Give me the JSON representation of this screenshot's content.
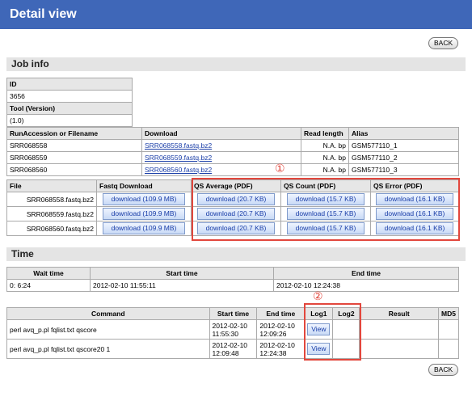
{
  "header": {
    "title": "Detail view"
  },
  "back_label": "BACK",
  "job": {
    "section_title": "Job info",
    "id_label": "ID",
    "id_value": "3656",
    "tool_label": "Tool (Version)",
    "tool_value": "(1.0)",
    "runs_headers": [
      "RunAccession or Filename",
      "Download",
      "Read length",
      "Alias"
    ],
    "runs": [
      {
        "acc": "SRR068558",
        "file": "SRR068558.fastq.bz2",
        "len": "N.A. bp",
        "alias": "GSM577110_1"
      },
      {
        "acc": "SRR068559",
        "file": "SRR068559.fastq.bz2",
        "len": "N.A. bp",
        "alias": "GSM577110_2"
      },
      {
        "acc": "SRR068560",
        "file": "SRR068560.fastq.bz2",
        "len": "N.A. bp",
        "alias": "GSM577110_3"
      }
    ],
    "files_headers": [
      "File",
      "Fastq Download",
      "QS Average (PDF)",
      "QS Count (PDF)",
      "QS Error (PDF)"
    ],
    "files": [
      {
        "name": "SRR068558.fastq.bz2",
        "fastq": "download (109.9 MB)",
        "avg": "download (20.7 KB)",
        "count": "download (15.7 KB)",
        "err": "download (16.1 KB)"
      },
      {
        "name": "SRR068559.fastq.bz2",
        "fastq": "download (109.9 MB)",
        "avg": "download (20.7 KB)",
        "count": "download (15.7 KB)",
        "err": "download (16.1 KB)"
      },
      {
        "name": "SRR068560.fastq.bz2",
        "fastq": "download (109.9 MB)",
        "avg": "download (20.7 KB)",
        "count": "download (15.7 KB)",
        "err": "download (16.1 KB)"
      }
    ]
  },
  "time": {
    "section_title": "Time",
    "headers": [
      "Wait time",
      "Start time",
      "End time"
    ],
    "wait": "0: 6:24",
    "start": "2012-02-10 11:55:11",
    "end": "2012-02-10 12:24:38"
  },
  "commands": {
    "headers": [
      "Command",
      "Start time",
      "End time",
      "Log1",
      "Log2",
      "Result",
      "MD5"
    ],
    "view_label": "View",
    "rows": [
      {
        "cmd": "perl avq_p.pl fqlist.txt qscore",
        "start_d": "2012-02-10",
        "start_t": "11:55:30",
        "end_d": "2012-02-10",
        "end_t": "12:09:26"
      },
      {
        "cmd": "perl avq_p.pl fqlist.txt qscore20 1",
        "start_d": "2012-02-10",
        "start_t": "12:09:48",
        "end_d": "2012-02-10",
        "end_t": "12:24:38"
      }
    ]
  },
  "annotations": {
    "marker1": "①",
    "marker2": "②",
    "color": "#e2473d"
  }
}
